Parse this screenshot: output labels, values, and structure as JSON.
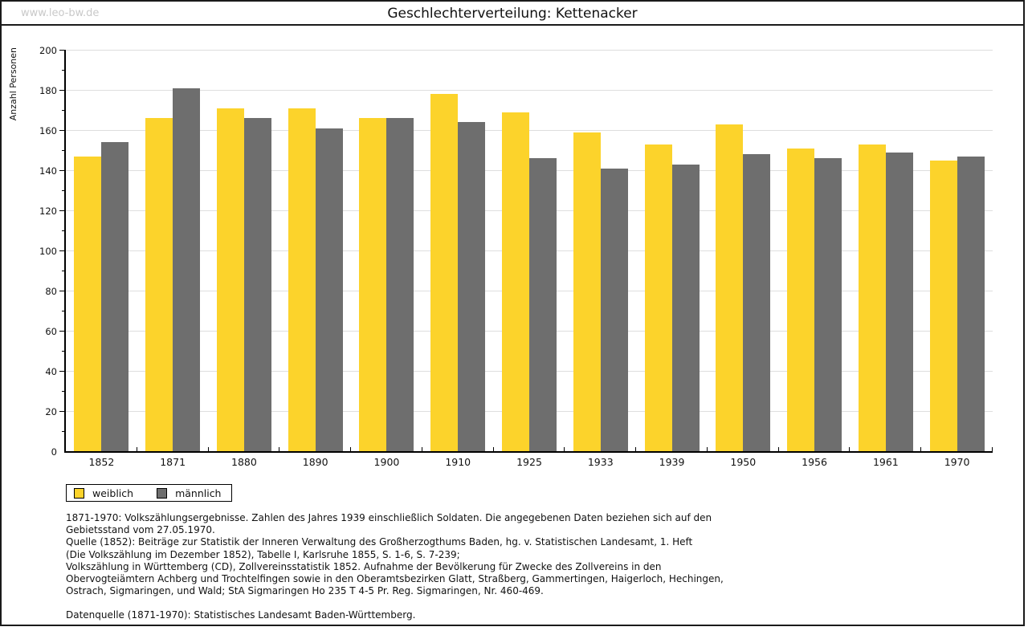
{
  "page": {
    "watermark": "www.leo-bw.de"
  },
  "chart_data": {
    "type": "bar",
    "title": "Geschlechterverteilung: Kettenacker",
    "ylabel": "Anzahl Personen",
    "xlabel": "",
    "ylim": [
      0,
      200
    ],
    "ytick_step": 20,
    "yminor_step": 10,
    "grid": true,
    "legend_position": "bottom-left",
    "categories": [
      "1852",
      "1871",
      "1880",
      "1890",
      "1900",
      "1910",
      "1925",
      "1933",
      "1939",
      "1950",
      "1956",
      "1961",
      "1970"
    ],
    "series": [
      {
        "name": "weiblich",
        "color": "#fcd32b",
        "values": [
          147,
          166,
          171,
          171,
          166,
          178,
          169,
          159,
          153,
          163,
          151,
          153,
          145
        ]
      },
      {
        "name": "männlich",
        "color": "#6e6e6e",
        "values": [
          154,
          181,
          166,
          161,
          166,
          164,
          146,
          141,
          143,
          148,
          146,
          149,
          147
        ]
      }
    ]
  },
  "footer": {
    "source_lines": [
      "1871-1970: Volkszählungsergebnisse. Zahlen des Jahres 1939 einschließlich Soldaten. Die angegebenen Daten beziehen sich auf den",
      "Gebietsstand vom 27.05.1970.",
      "Quelle (1852): Beiträge zur Statistik der Inneren Verwaltung des Großherzogthums Baden, hg. v. Statistischen Landesamt, 1. Heft",
      "(Die Volkszählung im Dezember 1852), Tabelle I, Karlsruhe 1855, S. 1-6, S. 7-239;",
      "Volkszählung in Württemberg (CD), Zollvereinsstatistik 1852. Aufnahme der Bevölkerung für Zwecke des Zollvereins in den",
      "Obervogteiämtern Achberg und Trochtelfingen sowie in den Oberamtsbezirken Glatt, Straßberg, Gammertingen, Haigerloch, Hechingen,",
      "Ostrach, Sigmaringen, und Wald; StA Sigmaringen Ho 235 T 4-5 Pr. Reg. Sigmaringen, Nr. 460-469."
    ],
    "datenquelle": "Datenquelle (1871-1970): Statistisches Landesamt Baden-Württemberg."
  }
}
